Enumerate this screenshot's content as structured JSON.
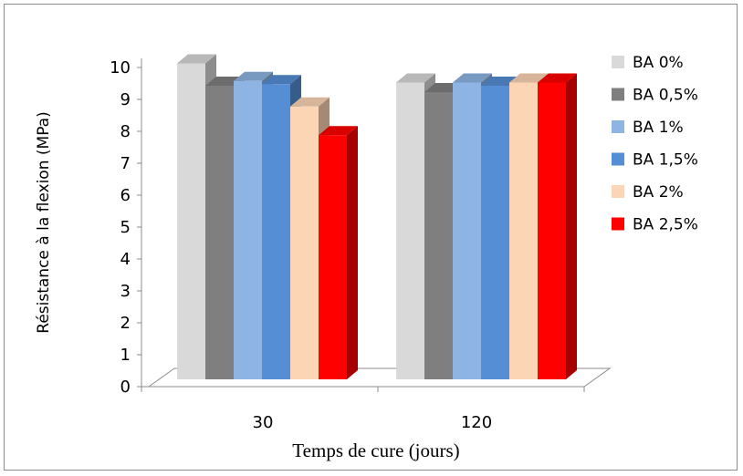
{
  "chart_data": {
    "type": "bar",
    "style": "3d-clustered-column",
    "categories": [
      "30",
      "120"
    ],
    "xlabel": "Temps de cure (jours)",
    "ylabel": "Résistance à la flexion (MPa)",
    "ylim": [
      0,
      10
    ],
    "yticks": [
      "0",
      "1",
      "2",
      "3",
      "4",
      "5",
      "6",
      "7",
      "8",
      "9",
      "10"
    ],
    "legend_position": "right",
    "series": [
      {
        "name": "BA 0%",
        "color": "#d9d9d9",
        "values": [
          9.9,
          9.3
        ]
      },
      {
        "name": "BA 0,5%",
        "color": "#7f7f7f",
        "values": [
          9.2,
          9.0
        ]
      },
      {
        "name": "BA 1%",
        "color": "#8db4e2",
        "values": [
          9.35,
          9.3
        ]
      },
      {
        "name": "BA 1,5%",
        "color": "#558ed5",
        "values": [
          9.25,
          9.2
        ]
      },
      {
        "name": "BA 2%",
        "color": "#fcd5b5",
        "values": [
          8.55,
          9.3
        ]
      },
      {
        "name": "BA 2,5%",
        "color": "#ff0000",
        "values": [
          7.65,
          9.3
        ]
      }
    ]
  }
}
